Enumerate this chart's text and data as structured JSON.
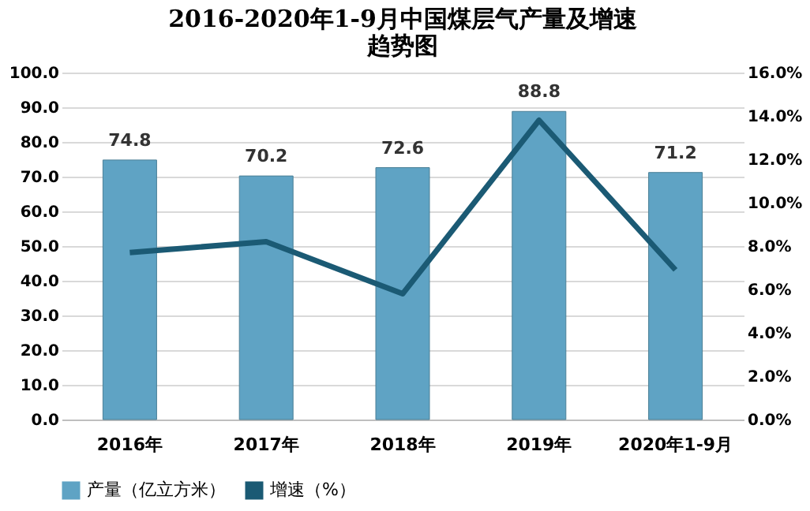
{
  "chart_data": {
    "type": "bar",
    "title": "2016-2020年1-9月中国煤层气产量及增速趋势图",
    "categories": [
      "2016年",
      "2017年",
      "2018年",
      "2019年",
      "2020年1-9月"
    ],
    "series": [
      {
        "name": "产量（亿立方米）",
        "color": "#5fa3c4",
        "values": [
          74.8,
          70.2,
          72.6,
          88.8,
          71.2
        ],
        "value_labels": [
          "74.8",
          "70.2",
          "72.6",
          "88.8",
          "71.2"
        ]
      },
      {
        "name": "增速（%）",
        "type": "line",
        "axis": "y2",
        "color": "#1b5a74",
        "values": [
          7.7,
          8.2,
          5.8,
          13.8,
          6.9
        ]
      }
    ],
    "ylim": [
      0,
      100
    ],
    "yticks": [
      {
        "value": 0,
        "label": "0.0"
      },
      {
        "value": 10,
        "label": "10.0"
      },
      {
        "value": 20,
        "label": "20.0"
      },
      {
        "value": 30,
        "label": "30.0"
      },
      {
        "value": 40,
        "label": "40.0"
      },
      {
        "value": 50,
        "label": "50.0"
      },
      {
        "value": 60,
        "label": "60.0"
      },
      {
        "value": 70,
        "label": "70.0"
      },
      {
        "value": 80,
        "label": "80.0"
      },
      {
        "value": 90,
        "label": "90.0"
      },
      {
        "value": 100,
        "label": "100.0"
      }
    ],
    "y2lim": [
      0,
      16
    ],
    "y2ticks": [
      {
        "value": 0,
        "label": "0.0%"
      },
      {
        "value": 2,
        "label": "2.0%"
      },
      {
        "value": 4,
        "label": "4.0%"
      },
      {
        "value": 6,
        "label": "6.0%"
      },
      {
        "value": 8,
        "label": "8.0%"
      },
      {
        "value": 10,
        "label": "10.0%"
      },
      {
        "value": 12,
        "label": "12.0%"
      },
      {
        "value": 14,
        "label": "14.0%"
      },
      {
        "value": 16,
        "label": "16.0%"
      }
    ],
    "grid": "y",
    "legend": "bottom",
    "marker": "none",
    "line_style": "solid"
  }
}
